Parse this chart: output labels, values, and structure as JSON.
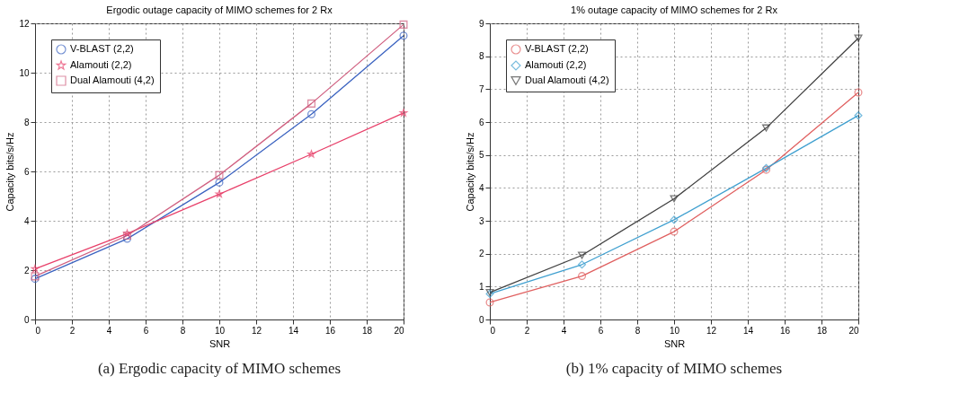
{
  "chart_data": [
    {
      "type": "line",
      "title": "Ergodic outage capacity of MIMO schemes for 2 Rx",
      "xlabel": "SNR",
      "ylabel": "Capacity bits/s/Hz",
      "annotations": [
        "(a) Ergodic capacity of MIMO schemes"
      ],
      "x": [
        0,
        5,
        10,
        15,
        20
      ],
      "xlim": [
        0,
        20
      ],
      "xticks": [
        0,
        2,
        4,
        6,
        8,
        10,
        12,
        14,
        16,
        18,
        20
      ],
      "ylim": [
        0,
        12
      ],
      "yticks": [
        0,
        2,
        4,
        6,
        8,
        10,
        12
      ],
      "grid": true,
      "legend": "top left",
      "series": [
        {
          "name": "V-BLAST (2,2)",
          "color": "#3a62c0",
          "marker": "circle",
          "values": [
            1.65,
            3.27,
            5.55,
            8.32,
            11.5
          ]
        },
        {
          "name": "Alamouti (2,2)",
          "color": "#e8406a",
          "marker": "star",
          "values": [
            2.05,
            3.48,
            5.08,
            6.7,
            8.37
          ]
        },
        {
          "name": "Dual Alamouti (4,2)",
          "color": "#d06080",
          "marker": "square",
          "values": [
            1.75,
            3.4,
            5.85,
            8.75,
            11.95
          ]
        }
      ]
    },
    {
      "type": "line",
      "title": "1% outage capacity of MIMO schemes for 2 Rx",
      "xlabel": "SNR",
      "ylabel": "Capacity bits/s/Hz",
      "annotations": [
        "(b) 1% capacity of MIMO schemes"
      ],
      "x": [
        0,
        5,
        10,
        15,
        20
      ],
      "xlim": [
        0,
        20
      ],
      "xticks": [
        0,
        2,
        4,
        6,
        8,
        10,
        12,
        14,
        16,
        18,
        20
      ],
      "ylim": [
        0,
        9
      ],
      "yticks": [
        0,
        1,
        2,
        3,
        4,
        5,
        6,
        7,
        8,
        9
      ],
      "grid": true,
      "legend": "top left",
      "series": [
        {
          "name": "V-BLAST (2,2)",
          "color": "#e06060",
          "marker": "circle",
          "values": [
            0.52,
            1.32,
            2.67,
            4.55,
            6.9
          ]
        },
        {
          "name": "Alamouti (2,2)",
          "color": "#40a0d0",
          "marker": "diamond",
          "values": [
            0.78,
            1.67,
            3.03,
            4.6,
            6.2
          ]
        },
        {
          "name": "Dual Alamouti (4,2)",
          "color": "#404040",
          "marker": "triangle",
          "values": [
            0.82,
            1.95,
            3.67,
            5.82,
            8.55
          ]
        }
      ]
    }
  ]
}
